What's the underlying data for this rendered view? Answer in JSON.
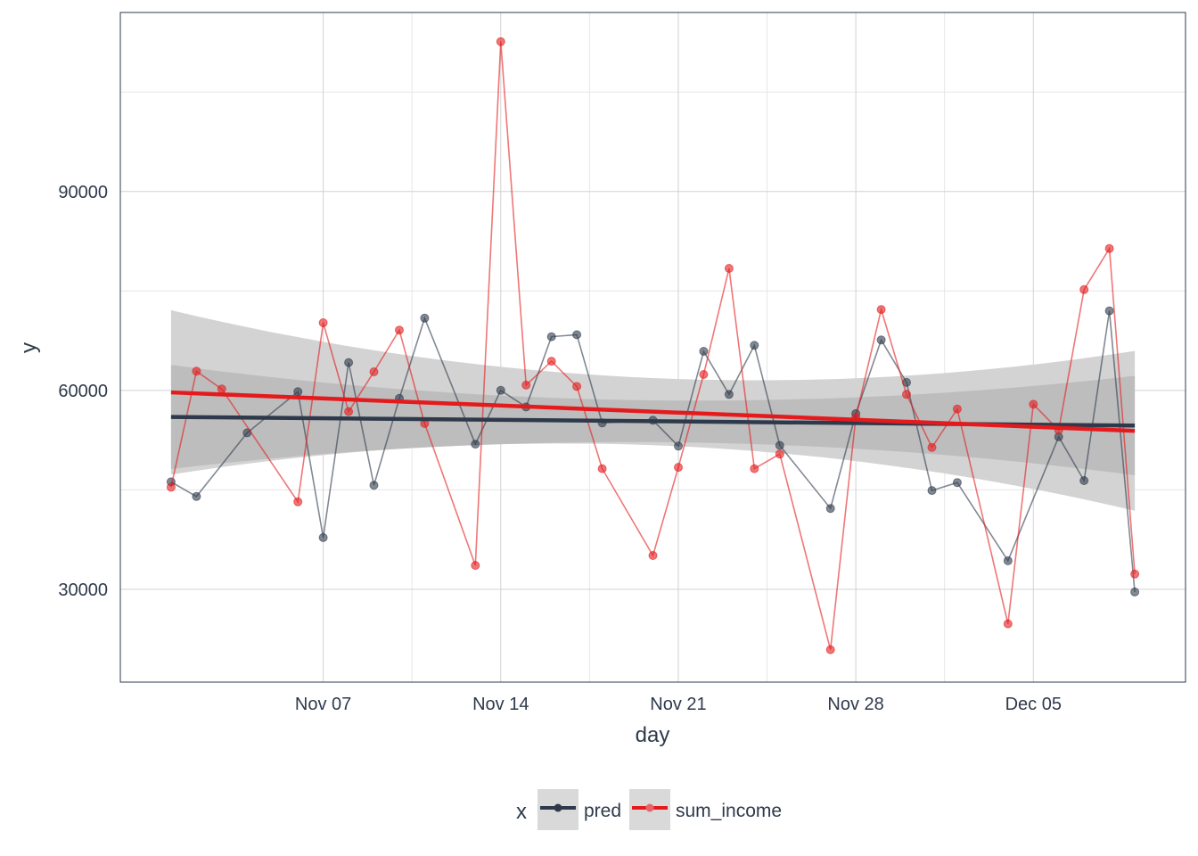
{
  "chart_data": {
    "type": "line",
    "title": "",
    "xlabel": "day",
    "ylabel": "y",
    "x_tick_labels": [
      "Nov 07",
      "Nov 14",
      "Nov 21",
      "Nov 28",
      "Dec 05"
    ],
    "x_tick_dates": [
      "2023-11-07",
      "2023-11-14",
      "2023-11-21",
      "2023-11-28",
      "2023-12-05"
    ],
    "y_ticks": [
      30000,
      60000,
      90000
    ],
    "y_tick_labels": [
      "30000",
      "60000",
      "90000"
    ],
    "xlim": [
      "2023-10-30",
      "2023-12-11"
    ],
    "ylim": [
      16000,
      117000
    ],
    "grid": true,
    "legend_position": "bottom",
    "legend_title": "x",
    "x": [
      "2023-11-01",
      "2023-11-02",
      "2023-11-03",
      "2023-11-04",
      "2023-11-05",
      "2023-11-06",
      "2023-11-07",
      "2023-11-08",
      "2023-11-09",
      "2023-11-10",
      "2023-11-11",
      "2023-11-12",
      "2023-11-13",
      "2023-11-14",
      "2023-11-15",
      "2023-11-16",
      "2023-11-17",
      "2023-11-18",
      "2023-11-19",
      "2023-11-20",
      "2023-11-21",
      "2023-11-22",
      "2023-11-23",
      "2023-11-24",
      "2023-11-25",
      "2023-11-26",
      "2023-11-27",
      "2023-11-28",
      "2023-11-29",
      "2023-11-30",
      "2023-12-01",
      "2023-12-02",
      "2023-12-03",
      "2023-12-04",
      "2023-12-05",
      "2023-12-06",
      "2023-12-07",
      "2023-12-08",
      "2023-12-09"
    ],
    "series": [
      {
        "name": "pred",
        "color": "#2e3a4b",
        "values": [
          46200,
          44000,
          null,
          53600,
          null,
          59800,
          37800,
          64200,
          45700,
          58800,
          70900,
          null,
          51900,
          60000,
          57500,
          68100,
          68400,
          55100,
          null,
          55500,
          51600,
          65900,
          59400,
          66800,
          51700,
          null,
          42200,
          56500,
          67600,
          61200,
          44900,
          46100,
          null,
          34300,
          null,
          53000,
          46400,
          72000,
          29600
        ],
        "trend": [
          56000,
          54700
        ],
        "band_inner_start": [
          48200,
          63900
        ],
        "band_inner_end": [
          47200,
          62200
        ],
        "band_outer_start": [
          47200,
          72000
        ],
        "band_outer_end": [
          41600,
          65700
        ]
      },
      {
        "name": "sum_income",
        "color": "#e41a1c",
        "values": [
          45400,
          62900,
          60200,
          null,
          null,
          43200,
          70200,
          56800,
          62800,
          69100,
          55000,
          null,
          33600,
          112600,
          60800,
          64400,
          60600,
          48200,
          null,
          35100,
          48400,
          62400,
          78400,
          48200,
          50400,
          null,
          20900,
          55900,
          72200,
          59400,
          51400,
          57200,
          null,
          24800,
          57900,
          54000,
          75200,
          81400,
          32300
        ],
        "trend": [
          59700,
          53900
        ]
      }
    ]
  }
}
